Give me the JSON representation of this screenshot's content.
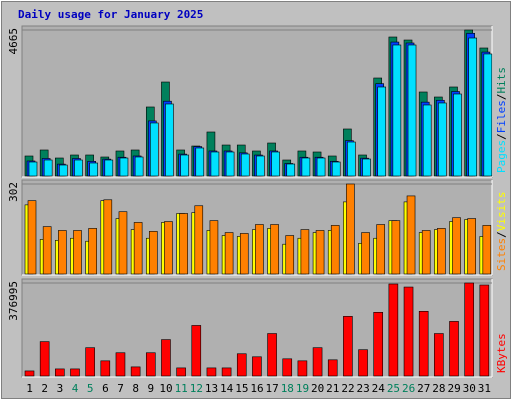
{
  "chart_data": [
    {
      "type": "bar",
      "title": "Daily usage for January 2025",
      "ylim": [
        0,
        4665
      ],
      "yticks": [
        4665
      ],
      "legend_separator": "/",
      "series": [
        {
          "name": "Hits",
          "color": "#00805c",
          "values": [
            639,
            831,
            575,
            671,
            671,
            607,
            799,
            831,
            2205,
            3003,
            831,
            958,
            1406,
            990,
            990,
            799,
            1054,
            511,
            799,
            767,
            639,
            1502,
            671,
            3131,
            4441,
            4345,
            2684,
            2524,
            2844,
            4665,
            4090
          ]
        },
        {
          "name": "Files",
          "color": "#0040ff",
          "values": [
            480,
            560,
            380,
            560,
            470,
            540,
            600,
            640,
            1760,
            2390,
            700,
            940,
            800,
            800,
            740,
            670,
            800,
            400,
            600,
            600,
            470,
            1130,
            570,
            2950,
            4280,
            4250,
            2360,
            2420,
            2700,
            4560,
            3960
          ]
        },
        {
          "name": "Pages",
          "color": "#00e0ff",
          "values": [
            447,
            511,
            351,
            511,
            415,
            511,
            575,
            607,
            1694,
            2301,
            671,
            895,
            767,
            767,
            703,
            639,
            767,
            383,
            575,
            575,
            447,
            1086,
            543,
            2844,
            4186,
            4186,
            2269,
            2333,
            2620,
            4409,
            3899
          ]
        }
      ]
    },
    {
      "type": "bar",
      "ylim": [
        0,
        302
      ],
      "yticks": [
        302
      ],
      "legend_separator": "/",
      "series": [
        {
          "name": "Visits",
          "color": "#ffff00",
          "values": [
            232,
            116,
            113,
            120,
            110,
            246,
            186,
            149,
            120,
            173,
            203,
            206,
            146,
            129,
            126,
            149,
            153,
            100,
            120,
            139,
            146,
            242,
            103,
            120,
            179,
            242,
            139,
            149,
            176,
            183,
            126
          ]
        },
        {
          "name": "Sites",
          "color": "#ff8000",
          "values": [
            246,
            159,
            146,
            146,
            153,
            249,
            209,
            173,
            143,
            176,
            203,
            229,
            179,
            139,
            136,
            166,
            166,
            129,
            149,
            146,
            163,
            302,
            139,
            166,
            179,
            262,
            146,
            153,
            189,
            186,
            163
          ]
        }
      ]
    },
    {
      "type": "bar",
      "ylim": [
        0,
        376995
      ],
      "yticks": [
        376995
      ],
      "categories": [
        "1",
        "2",
        "3",
        "4",
        "5",
        "6",
        "7",
        "8",
        "9",
        "10",
        "11",
        "12",
        "13",
        "14",
        "15",
        "16",
        "17",
        "18",
        "19",
        "20",
        "21",
        "22",
        "23",
        "24",
        "25",
        "26",
        "27",
        "28",
        "29",
        "30",
        "31"
      ],
      "category_colors": [
        "#000000",
        "#000000",
        "#000000",
        "#00805c",
        "#00805c",
        "#000000",
        "#000000",
        "#000000",
        "#000000",
        "#000000",
        "#00805c",
        "#00805c",
        "#000000",
        "#000000",
        "#000000",
        "#000000",
        "#000000",
        "#00805c",
        "#00805c",
        "#000000",
        "#000000",
        "#000000",
        "#000000",
        "#000000",
        "#00805c",
        "#00805c",
        "#000000",
        "#000000",
        "#000000",
        "#000000",
        "#000000"
      ],
      "series": [
        {
          "name": "KBytes",
          "color": "#ff0000",
          "values": [
            20490,
            139332,
            28686,
            28686,
            114744,
            61470,
            94254,
            36882,
            94254,
            147528,
            32784,
            204900,
            32784,
            32784,
            90156,
            77862,
            172116,
            69666,
            61470,
            114744,
            65568,
            241782,
            106548,
            258174,
            372918,
            360624,
            262272,
            172116,
            221292,
            376995,
            368820
          ]
        }
      ]
    }
  ]
}
